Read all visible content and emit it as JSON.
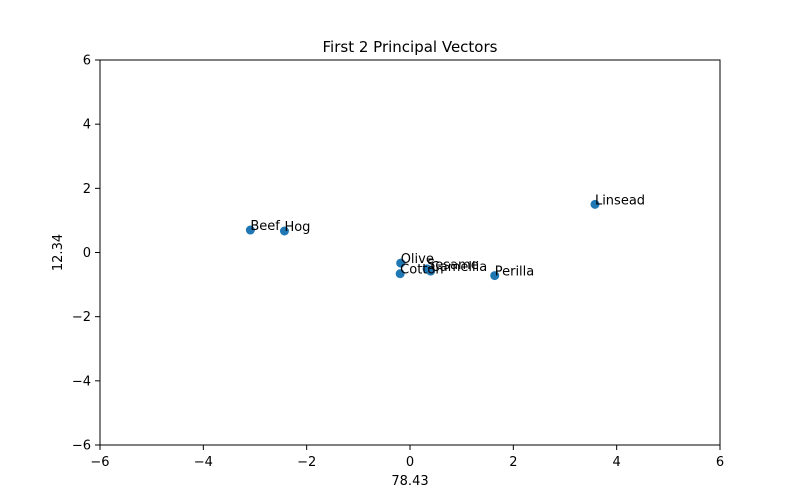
{
  "chart_data": {
    "type": "scatter",
    "title": "First 2 Principal Vectors",
    "xlabel": "78.43",
    "ylabel": "12.34",
    "xlim": [
      -6,
      6
    ],
    "ylim": [
      -6,
      6
    ],
    "xticks": [
      -6,
      -4,
      -2,
      0,
      2,
      4,
      6
    ],
    "yticks": [
      -6,
      -4,
      -2,
      0,
      2,
      4,
      6
    ],
    "grid": false,
    "marker_color": "#1f77b4",
    "points": [
      {
        "label": "Linsead",
        "x": 3.58,
        "y": 1.5
      },
      {
        "label": "Perilla",
        "x": 1.64,
        "y": -0.72
      },
      {
        "label": "Cotton",
        "x": -0.19,
        "y": -0.66
      },
      {
        "label": "Sesame",
        "x": 0.33,
        "y": -0.51
      },
      {
        "label": "Camellia",
        "x": 0.4,
        "y": -0.58
      },
      {
        "label": "Olive",
        "x": -0.18,
        "y": -0.33
      },
      {
        "label": "Beef",
        "x": -3.09,
        "y": 0.7
      },
      {
        "label": "Hog",
        "x": -2.43,
        "y": 0.67
      }
    ]
  }
}
